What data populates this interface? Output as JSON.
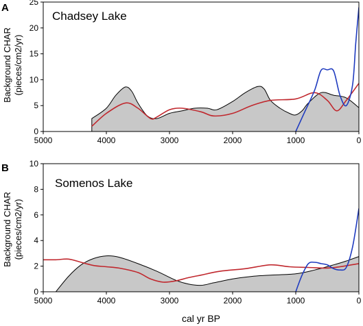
{
  "figure": {
    "x_axis_label": "cal yr BP",
    "y_axis_label_line1": "Background CHAR",
    "y_axis_label_line2": "(pieces/cm2/yr)"
  },
  "chart_data": [
    {
      "type": "line",
      "panel_letter": "A",
      "title": "Chadsey Lake",
      "xlabel": "",
      "ylabel": "Background CHAR (pieces/cm2/yr)",
      "xlim": [
        5000,
        0
      ],
      "ylim": [
        0,
        25
      ],
      "x_ticks": [
        5000,
        4000,
        3000,
        2000,
        1000,
        0
      ],
      "y_ticks": [
        0,
        5,
        10,
        15,
        20,
        25
      ],
      "grid": false,
      "series": [
        {
          "style": "filled-area",
          "color": "#000000",
          "fill": "#c8c8c8",
          "points": [
            [
              4230,
              2.5
            ],
            [
              4000,
              4.5
            ],
            [
              3850,
              7.0
            ],
            [
              3700,
              8.6
            ],
            [
              3600,
              7.8
            ],
            [
              3500,
              5.5
            ],
            [
              3350,
              3.0
            ],
            [
              3200,
              2.5
            ],
            [
              3000,
              3.5
            ],
            [
              2800,
              4.0
            ],
            [
              2600,
              4.5
            ],
            [
              2400,
              4.5
            ],
            [
              2250,
              4.2
            ],
            [
              2000,
              5.8
            ],
            [
              1800,
              7.5
            ],
            [
              1600,
              8.7
            ],
            [
              1500,
              8.2
            ],
            [
              1400,
              6.0
            ],
            [
              1250,
              4.5
            ],
            [
              1100,
              3.5
            ],
            [
              1000,
              3.2
            ],
            [
              900,
              4.0
            ],
            [
              800,
              5.5
            ],
            [
              600,
              7.5
            ],
            [
              400,
              7.0
            ],
            [
              200,
              6.5
            ],
            [
              0,
              4.6
            ]
          ]
        },
        {
          "style": "line",
          "color": "#c0272d",
          "points": [
            [
              4230,
              1.0
            ],
            [
              4000,
              3.5
            ],
            [
              3700,
              5.5
            ],
            [
              3500,
              4.5
            ],
            [
              3300,
              2.5
            ],
            [
              3200,
              2.8
            ],
            [
              3000,
              4.2
            ],
            [
              2800,
              4.5
            ],
            [
              2500,
              3.8
            ],
            [
              2300,
              3.0
            ],
            [
              2000,
              3.5
            ],
            [
              1700,
              5.0
            ],
            [
              1400,
              6.0
            ],
            [
              1000,
              6.3
            ],
            [
              700,
              7.5
            ],
            [
              500,
              6.0
            ],
            [
              350,
              4.0
            ],
            [
              200,
              6.0
            ],
            [
              0,
              9.3
            ]
          ]
        },
        {
          "style": "line",
          "color": "#1f3bbf",
          "points": [
            [
              1000,
              0.0
            ],
            [
              850,
              4.0
            ],
            [
              700,
              8.0
            ],
            [
              600,
              11.8
            ],
            [
              500,
              11.9
            ],
            [
              400,
              11.7
            ],
            [
              300,
              7.0
            ],
            [
              200,
              5.0
            ],
            [
              100,
              9.0
            ],
            [
              50,
              17.0
            ],
            [
              0,
              24.0
            ]
          ]
        }
      ]
    },
    {
      "type": "line",
      "panel_letter": "B",
      "title": "Somenos Lake",
      "xlabel": "cal yr BP",
      "ylabel": "Background CHAR (pieces/cm2/yr)",
      "xlim": [
        5000,
        0
      ],
      "ylim": [
        0,
        10
      ],
      "x_ticks": [
        5000,
        4000,
        3000,
        2000,
        1000,
        0
      ],
      "y_ticks": [
        0,
        2,
        4,
        6,
        8,
        10
      ],
      "grid": false,
      "series": [
        {
          "style": "filled-area",
          "color": "#000000",
          "fill": "#c8c8c8",
          "points": [
            [
              4800,
              0.0
            ],
            [
              4600,
              1.2
            ],
            [
              4400,
              2.1
            ],
            [
              4200,
              2.6
            ],
            [
              4000,
              2.8
            ],
            [
              3800,
              2.7
            ],
            [
              3500,
              2.2
            ],
            [
              3200,
              1.6
            ],
            [
              2900,
              0.9
            ],
            [
              2700,
              0.6
            ],
            [
              2500,
              0.5
            ],
            [
              2300,
              0.7
            ],
            [
              2000,
              1.0
            ],
            [
              1700,
              1.2
            ],
            [
              1400,
              1.3
            ],
            [
              1000,
              1.4
            ],
            [
              700,
              1.7
            ],
            [
              400,
              2.1
            ],
            [
              200,
              2.4
            ],
            [
              0,
              2.75
            ]
          ]
        },
        {
          "style": "line",
          "color": "#c0272d",
          "points": [
            [
              5000,
              2.5
            ],
            [
              4800,
              2.5
            ],
            [
              4600,
              2.55
            ],
            [
              4400,
              2.3
            ],
            [
              4200,
              2.05
            ],
            [
              4000,
              1.95
            ],
            [
              3800,
              1.85
            ],
            [
              3500,
              1.5
            ],
            [
              3300,
              1.0
            ],
            [
              3100,
              0.75
            ],
            [
              2900,
              0.85
            ],
            [
              2700,
              1.1
            ],
            [
              2500,
              1.3
            ],
            [
              2200,
              1.6
            ],
            [
              1800,
              1.8
            ],
            [
              1400,
              2.1
            ],
            [
              1100,
              1.95
            ],
            [
              800,
              1.9
            ],
            [
              500,
              1.85
            ],
            [
              300,
              1.95
            ],
            [
              0,
              2.2
            ]
          ]
        },
        {
          "style": "line",
          "color": "#1f3bbf",
          "points": [
            [
              1000,
              0.0
            ],
            [
              900,
              1.3
            ],
            [
              800,
              2.2
            ],
            [
              700,
              2.3
            ],
            [
              600,
              2.2
            ],
            [
              500,
              2.1
            ],
            [
              400,
              1.8
            ],
            [
              300,
              1.7
            ],
            [
              200,
              1.9
            ],
            [
              100,
              3.5
            ],
            [
              0,
              6.5
            ]
          ]
        }
      ]
    }
  ]
}
